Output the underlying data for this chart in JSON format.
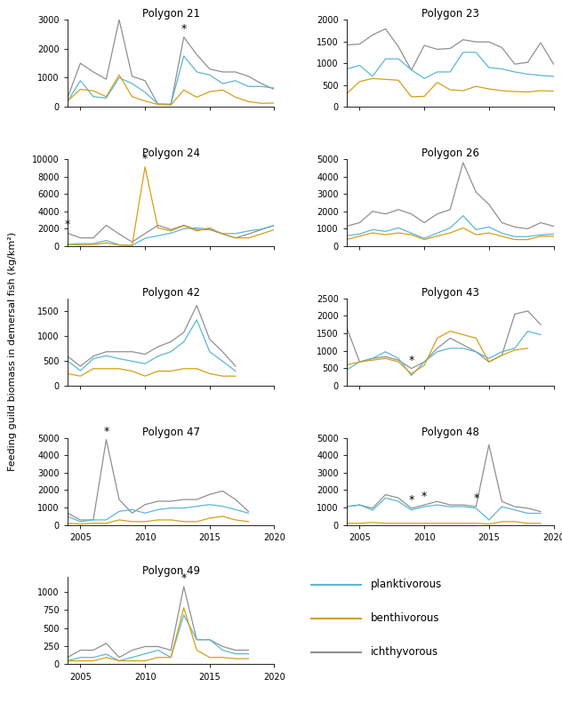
{
  "years": [
    2004,
    2005,
    2006,
    2007,
    2008,
    2009,
    2010,
    2011,
    2012,
    2013,
    2014,
    2015,
    2016,
    2017,
    2018,
    2019,
    2020
  ],
  "polygons": {
    "21": {
      "title": "Polygon 21",
      "planktivorous": [
        180,
        900,
        350,
        300,
        1000,
        800,
        500,
        100,
        80,
        1750,
        1200,
        1100,
        800,
        900,
        700,
        700,
        650
      ],
      "benthivorous": [
        200,
        600,
        550,
        350,
        1100,
        350,
        200,
        80,
        60,
        580,
        330,
        520,
        580,
        330,
        180,
        120,
        130
      ],
      "ichthyvorous": [
        300,
        1500,
        1200,
        950,
        3000,
        1050,
        900,
        90,
        90,
        2400,
        1800,
        1300,
        1200,
        1200,
        1050,
        800,
        600
      ],
      "star_years": [
        2013
      ]
    },
    "23": {
      "title": "Polygon 23",
      "planktivorous": [
        870,
        950,
        700,
        1100,
        1100,
        850,
        650,
        800,
        800,
        1250,
        1250,
        900,
        870,
        800,
        750,
        720,
        700
      ],
      "benthivorous": [
        300,
        580,
        650,
        630,
        610,
        230,
        240,
        560,
        390,
        370,
        470,
        410,
        370,
        350,
        340,
        370,
        360
      ],
      "ichthyvorous": [
        1420,
        1440,
        1650,
        1790,
        1380,
        840,
        1410,
        1320,
        1340,
        1540,
        1490,
        1490,
        1360,
        980,
        1020,
        1470,
        980
      ],
      "star_years": []
    },
    "24": {
      "title": "Polygon 24",
      "planktivorous": [
        200,
        300,
        300,
        650,
        150,
        80,
        900,
        1200,
        1500,
        2000,
        2100,
        1950,
        1450,
        1450,
        1750,
        1950,
        2400
      ],
      "benthivorous": [
        200,
        140,
        180,
        380,
        120,
        80,
        9100,
        2100,
        1750,
        2350,
        1750,
        2100,
        1400,
        950,
        950,
        1400,
        1900
      ],
      "ichthyvorous": [
        1500,
        950,
        950,
        2400,
        1400,
        480,
        1450,
        2400,
        1900,
        2400,
        1900,
        1900,
        1400,
        950,
        1400,
        1900,
        2400
      ],
      "star_years": [
        2004,
        2010
      ]
    },
    "26": {
      "title": "Polygon 26",
      "planktivorous": [
        600,
        700,
        950,
        850,
        1050,
        750,
        450,
        750,
        1050,
        1750,
        950,
        1100,
        750,
        550,
        550,
        650,
        700
      ],
      "benthivorous": [
        380,
        580,
        760,
        660,
        760,
        660,
        380,
        580,
        760,
        1050,
        660,
        760,
        570,
        380,
        380,
        570,
        570
      ],
      "ichthyvorous": [
        1150,
        1350,
        2000,
        1850,
        2100,
        1850,
        1350,
        1850,
        2100,
        4800,
        3100,
        2400,
        1350,
        1100,
        1000,
        1350,
        1150
      ],
      "star_years": []
    },
    "42": {
      "title": "Polygon 42",
      "planktivorous": [
        500,
        300,
        540,
        600,
        540,
        490,
        440,
        590,
        680,
        880,
        1320,
        680,
        490,
        290,
        null,
        null,
        null
      ],
      "benthivorous": [
        240,
        190,
        340,
        340,
        340,
        290,
        190,
        290,
        290,
        340,
        340,
        240,
        190,
        190,
        null,
        null,
        null
      ],
      "ichthyvorous": [
        590,
        390,
        590,
        680,
        680,
        680,
        630,
        780,
        880,
        1070,
        1610,
        930,
        680,
        390,
        null,
        null,
        null
      ],
      "star_years": []
    },
    "43": {
      "title": "Polygon 43",
      "planktivorous": [
        450,
        680,
        780,
        970,
        780,
        290,
        680,
        970,
        1070,
        1070,
        970,
        780,
        970,
        1070,
        1560,
        1460,
        null
      ],
      "benthivorous": [
        590,
        680,
        730,
        780,
        680,
        340,
        580,
        1360,
        1560,
        1460,
        1360,
        680,
        870,
        1020,
        1070,
        null,
        null
      ],
      "ichthyvorous": [
        1660,
        680,
        780,
        830,
        730,
        490,
        680,
        1070,
        1360,
        1170,
        970,
        680,
        870,
        2050,
        2140,
        1750,
        null
      ],
      "star_years": [
        2009
      ]
    },
    "47": {
      "title": "Polygon 47",
      "planktivorous": [
        490,
        190,
        290,
        290,
        780,
        880,
        680,
        880,
        970,
        970,
        1070,
        1170,
        1070,
        880,
        680,
        null,
        null
      ],
      "benthivorous": [
        95,
        48,
        95,
        95,
        290,
        190,
        190,
        290,
        290,
        190,
        190,
        390,
        490,
        290,
        190,
        null,
        null
      ],
      "ichthyvorous": [
        680,
        290,
        290,
        4900,
        1460,
        680,
        1170,
        1360,
        1360,
        1460,
        1460,
        1750,
        1950,
        1460,
        780,
        null,
        null
      ],
      "star_years": [
        2007
      ]
    },
    "48": {
      "title": "Polygon 48",
      "planktivorous": [
        1050,
        1150,
        850,
        1550,
        1350,
        860,
        1050,
        1150,
        1050,
        1050,
        960,
        290,
        1050,
        860,
        670,
        670,
        null
      ],
      "benthivorous": [
        95,
        95,
        145,
        95,
        95,
        95,
        95,
        95,
        95,
        95,
        95,
        48,
        190,
        190,
        95,
        95,
        null
      ],
      "ichthyvorous": [
        1050,
        1150,
        960,
        1740,
        1550,
        960,
        1150,
        1350,
        1150,
        1150,
        1050,
        4600,
        1350,
        1050,
        960,
        770,
        null
      ],
      "star_years": [
        2009,
        2010,
        2014
      ]
    },
    "49": {
      "title": "Polygon 49",
      "planktivorous": [
        48,
        95,
        95,
        140,
        48,
        95,
        145,
        195,
        95,
        680,
        340,
        340,
        195,
        145,
        145,
        null,
        null
      ],
      "benthivorous": [
        48,
        48,
        48,
        95,
        48,
        48,
        48,
        95,
        95,
        780,
        195,
        95,
        95,
        78,
        78,
        null,
        null
      ],
      "ichthyvorous": [
        95,
        195,
        195,
        290,
        95,
        195,
        245,
        245,
        195,
        1070,
        340,
        340,
        245,
        195,
        195,
        null,
        null
      ],
      "star_years": [
        2013
      ]
    }
  },
  "colors": {
    "planktivorous": "#5bb8d4",
    "benthivorous": "#d4a017",
    "ichthyvorous": "#909090"
  },
  "ylabel": "Feeding guild biomass in demersal fish (kg/km²)",
  "ylims": {
    "21": [
      0,
      3000
    ],
    "23": [
      0,
      2000
    ],
    "24": [
      0,
      10000
    ],
    "26": [
      0,
      5000
    ],
    "42": [
      0,
      1750
    ],
    "43": [
      0,
      2500
    ],
    "47": [
      0,
      5000
    ],
    "48": [
      0,
      5000
    ],
    "49": [
      0,
      1200
    ]
  },
  "polygon_layout": [
    [
      "21",
      "23"
    ],
    [
      "24",
      "26"
    ],
    [
      "42",
      "43"
    ],
    [
      "47",
      "48"
    ],
    [
      "49",
      null
    ]
  ]
}
